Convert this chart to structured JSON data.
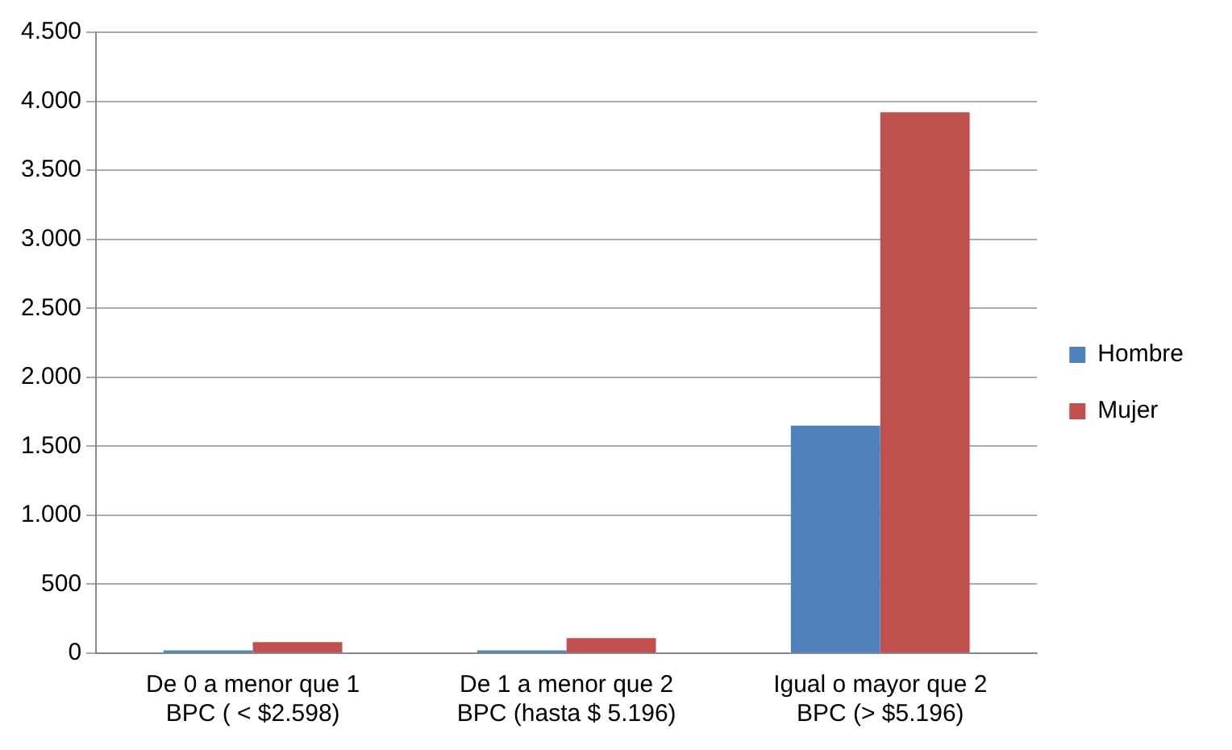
{
  "chart_data": {
    "type": "bar",
    "categories": [
      "De 0 a menor que 1 BPC ( < $2.598)",
      "De 1 a menor que 2 BPC (hasta $ 5.196)",
      "Igual o mayor que 2 BPC (> $5.196)"
    ],
    "series": [
      {
        "name": "Hombre",
        "color": "#4f81bd",
        "values": [
          20,
          20,
          1650
        ]
      },
      {
        "name": "Mujer",
        "color": "#c0504d",
        "values": [
          80,
          110,
          3920
        ]
      }
    ],
    "ylim": [
      0,
      4500
    ],
    "yticks": [
      {
        "value": 0,
        "label": "0"
      },
      {
        "value": 500,
        "label": "500"
      },
      {
        "value": 1000,
        "label": "1.000"
      },
      {
        "value": 1500,
        "label": "1.500"
      },
      {
        "value": 2000,
        "label": "2.000"
      },
      {
        "value": 2500,
        "label": "2.500"
      },
      {
        "value": 3000,
        "label": "3.000"
      },
      {
        "value": 3500,
        "label": "3.500"
      },
      {
        "value": 4000,
        "label": "4.000"
      },
      {
        "value": 4500,
        "label": "4.500"
      }
    ],
    "grid": "y",
    "legend": "right"
  }
}
